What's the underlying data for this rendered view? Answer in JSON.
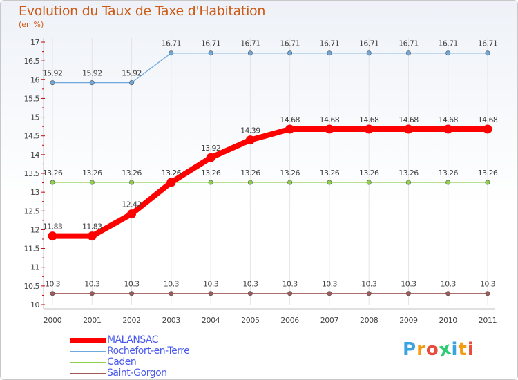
{
  "chart_data": {
    "type": "line",
    "title": "Evolution du Taux de Taxe d'Habitation",
    "subtitle": "(en %)",
    "xlabel": "",
    "ylabel": "",
    "categories": [
      "2000",
      "2001",
      "2002",
      "2003",
      "2004",
      "2005",
      "2006",
      "2007",
      "2008",
      "2009",
      "2010",
      "2011"
    ],
    "ylim": [
      10,
      17
    ],
    "yticks": [
      "10",
      "10.5",
      "11",
      "11.5",
      "12",
      "12.5",
      "13",
      "13.5",
      "14",
      "14.5",
      "15",
      "15.5",
      "16",
      "16.5",
      "17"
    ],
    "grid": true,
    "legend_position": "bottom-left",
    "series": [
      {
        "name": "MALANSAC",
        "color": "#ff0000",
        "values": [
          11.83,
          11.83,
          12.42,
          13.26,
          13.92,
          14.39,
          14.68,
          14.68,
          14.68,
          14.68,
          14.68,
          14.68
        ],
        "labels": [
          "11.83",
          "11.83",
          "12.42",
          "13.26",
          "13.92",
          "14.39",
          "14.68",
          "14.68",
          "14.68",
          "14.68",
          "14.68",
          "14.68"
        ]
      },
      {
        "name": "Rochefort-en-Terre",
        "color": "#6fa8dc",
        "values": [
          15.92,
          15.92,
          15.92,
          16.71,
          16.71,
          16.71,
          16.71,
          16.71,
          16.71,
          16.71,
          16.71,
          16.71
        ],
        "labels": [
          "15.92",
          "15.92",
          "15.92",
          "16.71",
          "16.71",
          "16.71",
          "16.71",
          "16.71",
          "16.71",
          "16.71",
          "16.71",
          "16.71"
        ]
      },
      {
        "name": "Caden",
        "color": "#8fd14f",
        "values": [
          13.26,
          13.26,
          13.26,
          13.26,
          13.26,
          13.26,
          13.26,
          13.26,
          13.26,
          13.26,
          13.26,
          13.26
        ],
        "labels": [
          "13.26",
          "13.26",
          "13.26",
          "13.26",
          "13.26",
          "13.26",
          "13.26",
          "13.26",
          "13.26",
          "13.26",
          "13.26",
          "13.26"
        ]
      },
      {
        "name": "Saint-Gorgon",
        "color": "#a05a5a",
        "values": [
          10.3,
          10.3,
          10.3,
          10.3,
          10.3,
          10.3,
          10.3,
          10.3,
          10.3,
          10.3,
          10.3,
          10.3
        ],
        "labels": [
          "10.3",
          "10.3",
          "10.3",
          "10.3",
          "10.3",
          "10.3",
          "10.3",
          "10.3",
          "10.3",
          "10.3",
          "10.3",
          "10.3"
        ]
      }
    ]
  },
  "logo": {
    "text": "Proxiti"
  }
}
